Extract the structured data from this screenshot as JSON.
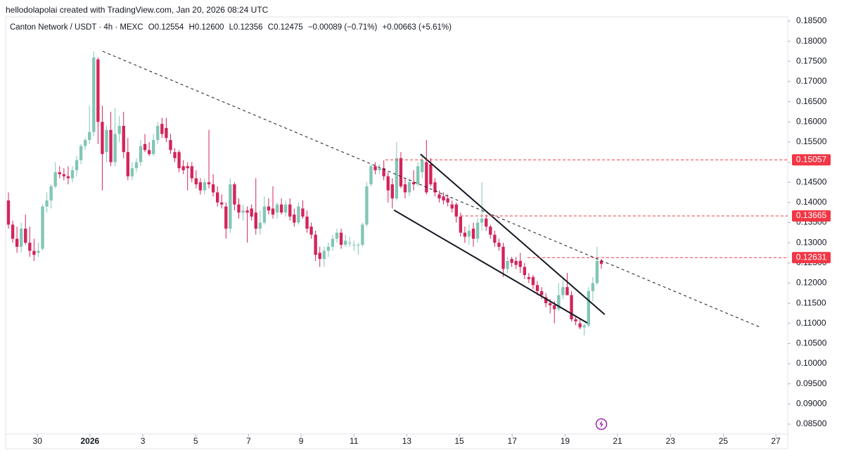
{
  "header": "hellodolapolai created with TradingView.com, Jan 20, 2026 08:24 UTC",
  "chart_data": {
    "type": "candlestick",
    "legend": {
      "symbol": "Canton Network / USDT · 4h · MEXC",
      "open": "O0.12554",
      "high": "H0.12600",
      "low": "L0.12356",
      "close": "C0.12475",
      "change": "−0.00089 (−0.71%)",
      "change2": "+0.00663 (+5.61%)"
    },
    "up_color": "#82c6b6",
    "down_color": "#d3245a",
    "candles": [
      [
        0.1405,
        0.1425,
        0.1335,
        0.1345
      ],
      [
        0.1345,
        0.1355,
        0.13,
        0.131
      ],
      [
        0.131,
        0.134,
        0.1275,
        0.129
      ],
      [
        0.129,
        0.135,
        0.1275,
        0.1335
      ],
      [
        0.1335,
        0.137,
        0.1295,
        0.13
      ],
      [
        0.13,
        0.134,
        0.1265,
        0.128
      ],
      [
        0.128,
        0.131,
        0.1255,
        0.127
      ],
      [
        0.1275,
        0.13,
        0.1265,
        0.128
      ],
      [
        0.1285,
        0.1395,
        0.128,
        0.139
      ],
      [
        0.139,
        0.1425,
        0.1375,
        0.1405
      ],
      [
        0.1405,
        0.1445,
        0.1385,
        0.144
      ],
      [
        0.144,
        0.15,
        0.1435,
        0.1475
      ],
      [
        0.1475,
        0.149,
        0.146,
        0.147
      ],
      [
        0.147,
        0.1485,
        0.1455,
        0.1465
      ],
      [
        0.1465,
        0.149,
        0.1445,
        0.146
      ],
      [
        0.146,
        0.149,
        0.145,
        0.148
      ],
      [
        0.148,
        0.1515,
        0.1465,
        0.1505
      ],
      [
        0.1505,
        0.1545,
        0.1495,
        0.154
      ],
      [
        0.154,
        0.156,
        0.153,
        0.1555
      ],
      [
        0.1555,
        0.164,
        0.1545,
        0.1575
      ],
      [
        0.1575,
        0.1775,
        0.1565,
        0.176
      ],
      [
        0.1755,
        0.176,
        0.1545,
        0.16
      ],
      [
        0.16,
        0.164,
        0.143,
        0.152
      ],
      [
        0.1525,
        0.159,
        0.15,
        0.158
      ],
      [
        0.158,
        0.1625,
        0.149,
        0.15
      ],
      [
        0.15,
        0.1635,
        0.149,
        0.157
      ],
      [
        0.157,
        0.1615,
        0.155,
        0.159
      ],
      [
        0.159,
        0.1625,
        0.151,
        0.1525
      ],
      [
        0.1525,
        0.156,
        0.1455,
        0.1465
      ],
      [
        0.1465,
        0.15,
        0.1455,
        0.1485
      ],
      [
        0.1485,
        0.151,
        0.1475,
        0.15
      ],
      [
        0.15,
        0.1555,
        0.149,
        0.154
      ],
      [
        0.1545,
        0.157,
        0.1525,
        0.153
      ],
      [
        0.153,
        0.155,
        0.1515,
        0.152
      ],
      [
        0.152,
        0.157,
        0.1515,
        0.1555
      ],
      [
        0.1555,
        0.16,
        0.1545,
        0.159
      ],
      [
        0.1595,
        0.161,
        0.156,
        0.157
      ],
      [
        0.1585,
        0.161,
        0.155,
        0.156
      ],
      [
        0.1555,
        0.157,
        0.152,
        0.153
      ],
      [
        0.1525,
        0.1535,
        0.15,
        0.151
      ],
      [
        0.1525,
        0.153,
        0.1475,
        0.1485
      ],
      [
        0.149,
        0.1505,
        0.147,
        0.148
      ],
      [
        0.149,
        0.15,
        0.143,
        0.1485
      ],
      [
        0.149,
        0.15,
        0.145,
        0.146
      ],
      [
        0.146,
        0.148,
        0.1435,
        0.1445
      ],
      [
        0.145,
        0.146,
        0.142,
        0.143
      ],
      [
        0.143,
        0.146,
        0.142,
        0.145
      ],
      [
        0.145,
        0.158,
        0.1435,
        0.1445
      ],
      [
        0.1445,
        0.147,
        0.1415,
        0.1425
      ],
      [
        0.1425,
        0.144,
        0.139,
        0.14
      ],
      [
        0.14,
        0.142,
        0.1385,
        0.1395
      ],
      [
        0.139,
        0.14,
        0.131,
        0.1335
      ],
      [
        0.1335,
        0.146,
        0.1325,
        0.1445
      ],
      [
        0.1445,
        0.145,
        0.138,
        0.1395
      ],
      [
        0.1395,
        0.141,
        0.136,
        0.1375
      ],
      [
        0.1375,
        0.1395,
        0.1355,
        0.138
      ],
      [
        0.138,
        0.139,
        0.13,
        0.1375
      ],
      [
        0.1385,
        0.1395,
        0.1355,
        0.1365
      ],
      [
        0.1375,
        0.146,
        0.132,
        0.1335
      ],
      [
        0.1335,
        0.138,
        0.132,
        0.135
      ],
      [
        0.135,
        0.1415,
        0.1345,
        0.139
      ],
      [
        0.139,
        0.141,
        0.137,
        0.138
      ],
      [
        0.1385,
        0.144,
        0.136,
        0.137
      ],
      [
        0.1375,
        0.14,
        0.136,
        0.1395
      ],
      [
        0.1395,
        0.141,
        0.137,
        0.1375
      ],
      [
        0.1375,
        0.1405,
        0.1365,
        0.1395
      ],
      [
        0.1395,
        0.141,
        0.1355,
        0.1365
      ],
      [
        0.137,
        0.1385,
        0.134,
        0.135
      ],
      [
        0.135,
        0.14,
        0.1345,
        0.139
      ],
      [
        0.1385,
        0.1405,
        0.136,
        0.1365
      ],
      [
        0.1365,
        0.138,
        0.1325,
        0.1335
      ],
      [
        0.134,
        0.135,
        0.131,
        0.132
      ],
      [
        0.132,
        0.133,
        0.1255,
        0.127
      ],
      [
        0.1275,
        0.129,
        0.124,
        0.126
      ],
      [
        0.126,
        0.129,
        0.124,
        0.128
      ],
      [
        0.128,
        0.13,
        0.1265,
        0.129
      ],
      [
        0.129,
        0.132,
        0.128,
        0.131
      ],
      [
        0.131,
        0.1335,
        0.13,
        0.1325
      ],
      [
        0.1325,
        0.1335,
        0.1285,
        0.1295
      ],
      [
        0.1295,
        0.132,
        0.129,
        0.1305
      ],
      [
        0.13,
        0.1315,
        0.129,
        0.13
      ],
      [
        0.1295,
        0.1305,
        0.128,
        0.1295
      ],
      [
        0.1295,
        0.13,
        0.127,
        0.1295
      ],
      [
        0.1295,
        0.135,
        0.129,
        0.1345
      ],
      [
        0.1345,
        0.145,
        0.134,
        0.144
      ],
      [
        0.1445,
        0.1495,
        0.144,
        0.149
      ],
      [
        0.149,
        0.15,
        0.147,
        0.148
      ],
      [
        0.148,
        0.1495,
        0.147,
        0.1485
      ],
      [
        0.1485,
        0.1505,
        0.1455,
        0.1465
      ],
      [
        0.1465,
        0.1475,
        0.14,
        0.143
      ],
      [
        0.1445,
        0.146,
        0.1385,
        0.141
      ],
      [
        0.141,
        0.155,
        0.1405,
        0.151
      ],
      [
        0.151,
        0.1525,
        0.1435,
        0.144
      ],
      [
        0.1445,
        0.146,
        0.141,
        0.1425
      ],
      [
        0.1425,
        0.146,
        0.1415,
        0.145
      ],
      [
        0.145,
        0.148,
        0.143,
        0.1445
      ],
      [
        0.1445,
        0.15,
        0.144,
        0.149
      ],
      [
        0.1475,
        0.1515,
        0.146,
        0.1505
      ],
      [
        0.15,
        0.1555,
        0.142,
        0.1425
      ],
      [
        0.1495,
        0.151,
        0.144,
        0.1445
      ],
      [
        0.145,
        0.146,
        0.1415,
        0.1425
      ],
      [
        0.142,
        0.143,
        0.14,
        0.141
      ],
      [
        0.1415,
        0.1425,
        0.1395,
        0.1405
      ],
      [
        0.141,
        0.142,
        0.139,
        0.14
      ],
      [
        0.1395,
        0.1405,
        0.1375,
        0.1385
      ],
      [
        0.1395,
        0.14,
        0.135,
        0.1365
      ],
      [
        0.1365,
        0.1375,
        0.1315,
        0.1325
      ],
      [
        0.1325,
        0.134,
        0.13,
        0.1315
      ],
      [
        0.1315,
        0.1345,
        0.1295,
        0.133
      ],
      [
        0.1335,
        0.135,
        0.129,
        0.131
      ],
      [
        0.131,
        0.136,
        0.13,
        0.135
      ],
      [
        0.135,
        0.145,
        0.133,
        0.136
      ],
      [
        0.136,
        0.137,
        0.133,
        0.134
      ],
      [
        0.134,
        0.1345,
        0.131,
        0.132
      ],
      [
        0.132,
        0.133,
        0.129,
        0.13
      ],
      [
        0.13,
        0.131,
        0.128,
        0.129
      ],
      [
        0.129,
        0.13,
        0.1215,
        0.1235
      ],
      [
        0.1235,
        0.1265,
        0.1225,
        0.1255
      ],
      [
        0.126,
        0.1265,
        0.124,
        0.125
      ],
      [
        0.1255,
        0.1265,
        0.1235,
        0.1245
      ],
      [
        0.1255,
        0.1275,
        0.1225,
        0.124
      ],
      [
        0.124,
        0.125,
        0.121,
        0.122
      ],
      [
        0.1215,
        0.1225,
        0.12,
        0.121
      ],
      [
        0.1215,
        0.122,
        0.1185,
        0.1195
      ],
      [
        0.1195,
        0.1205,
        0.117,
        0.118
      ],
      [
        0.118,
        0.119,
        0.116,
        0.117
      ],
      [
        0.1165,
        0.1175,
        0.114,
        0.115
      ],
      [
        0.115,
        0.116,
        0.1125,
        0.1145
      ],
      [
        0.1145,
        0.1155,
        0.11,
        0.1135
      ],
      [
        0.1135,
        0.12,
        0.113,
        0.117
      ],
      [
        0.117,
        0.121,
        0.116,
        0.119
      ],
      [
        0.119,
        0.1225,
        0.117,
        0.117
      ],
      [
        0.117,
        0.118,
        0.1105,
        0.111
      ],
      [
        0.111,
        0.112,
        0.1095,
        0.1105
      ],
      [
        0.11,
        0.111,
        0.1085,
        0.109
      ],
      [
        0.109,
        0.11,
        0.107,
        0.1095
      ],
      [
        0.1095,
        0.119,
        0.109,
        0.118
      ],
      [
        0.118,
        0.1215,
        0.1155,
        0.12
      ],
      [
        0.12,
        0.129,
        0.1195,
        0.1255
      ],
      [
        0.12554,
        0.126,
        0.12356,
        0.12475
      ]
    ],
    "xlim": [
      -0.66,
      182.7
    ],
    "xticks": [
      {
        "value": 6.8,
        "label": "30"
      },
      {
        "value": 19.1,
        "label": "2026"
      },
      {
        "value": 31.5,
        "label": "3"
      },
      {
        "value": 43.9,
        "label": "5"
      },
      {
        "value": 56.3,
        "label": "7"
      },
      {
        "value": 68.6,
        "label": "9"
      },
      {
        "value": 81.0,
        "label": "11"
      },
      {
        "value": 93.4,
        "label": "13"
      },
      {
        "value": 105.7,
        "label": "15"
      },
      {
        "value": 118.1,
        "label": "17"
      },
      {
        "value": 130.5,
        "label": "19"
      },
      {
        "value": 142.8,
        "label": "21"
      },
      {
        "value": 155.2,
        "label": "23"
      },
      {
        "value": 167.6,
        "label": "25"
      },
      {
        "value": 179.9,
        "label": "27"
      }
    ],
    "ylim": [
      0.08203,
      0.18884
    ],
    "yticks": [
      {
        "value": 0.185,
        "label": "0.18500"
      },
      {
        "value": 0.18,
        "label": "0.18000"
      },
      {
        "value": 0.175,
        "label": "0.17500"
      },
      {
        "value": 0.17,
        "label": "0.17000"
      },
      {
        "value": 0.165,
        "label": "0.16500"
      },
      {
        "value": 0.16,
        "label": "0.16000"
      },
      {
        "value": 0.155,
        "label": "0.15500"
      },
      {
        "value": 0.15,
        "label": "0.15000"
      },
      {
        "value": 0.145,
        "label": "0.14500"
      },
      {
        "value": 0.14,
        "label": "0.14000"
      },
      {
        "value": 0.135,
        "label": "0.13500"
      },
      {
        "value": 0.13,
        "label": "0.13000"
      },
      {
        "value": 0.125,
        "label": "0.12500"
      },
      {
        "value": 0.12,
        "label": "0.12000"
      },
      {
        "value": 0.115,
        "label": "0.11500"
      },
      {
        "value": 0.11,
        "label": "0.11000"
      },
      {
        "value": 0.105,
        "label": "0.10500"
      },
      {
        "value": 0.1,
        "label": "0.10000"
      },
      {
        "value": 0.095,
        "label": "0.09500"
      },
      {
        "value": 0.09,
        "label": "0.09000"
      },
      {
        "value": 0.085,
        "label": "0.08500"
      }
    ],
    "levels": [
      {
        "value": 0.15057,
        "start": 88.4
      },
      {
        "value": 0.13665,
        "start": 106
      },
      {
        "value": 0.12631,
        "start": 121.7
      }
    ],
    "level_color": "#f23645",
    "drawings": [
      {
        "style": "dashed",
        "points": [
          [
            22.1,
            0.1775
          ],
          [
            176.1,
            0.1091
          ]
        ]
      },
      {
        "style": "solid",
        "points": [
          [
            96.6,
            0.152
          ],
          [
            139.8,
            0.1122
          ]
        ]
      },
      {
        "style": "solid",
        "points": [
          [
            90.4,
            0.1381
          ],
          [
            135.7,
            0.1101
          ]
        ]
      }
    ]
  }
}
